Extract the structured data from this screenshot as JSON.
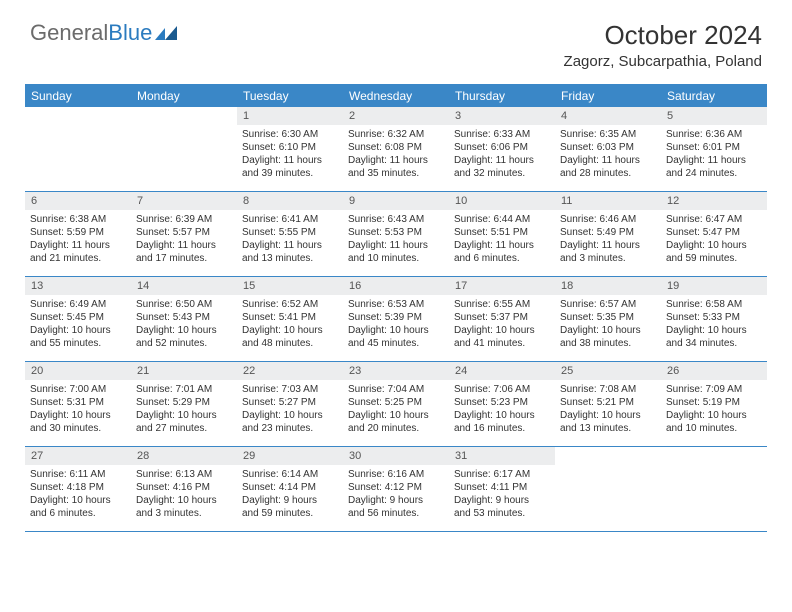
{
  "logo": {
    "text_gray": "General",
    "text_blue": "Blue"
  },
  "title": "October 2024",
  "location": "Zagorz, Subcarpathia, Poland",
  "colors": {
    "header_bg": "#3a87c7",
    "header_text": "#ffffff",
    "daynum_bg": "#ecedee",
    "rule": "#3a87c7",
    "body_text": "#333333"
  },
  "day_headers": [
    "Sunday",
    "Monday",
    "Tuesday",
    "Wednesday",
    "Thursday",
    "Friday",
    "Saturday"
  ],
  "weeks": [
    [
      {
        "empty": true
      },
      {
        "empty": true
      },
      {
        "num": "1",
        "sunrise": "Sunrise: 6:30 AM",
        "sunset": "Sunset: 6:10 PM",
        "daylight1": "Daylight: 11 hours",
        "daylight2": "and 39 minutes."
      },
      {
        "num": "2",
        "sunrise": "Sunrise: 6:32 AM",
        "sunset": "Sunset: 6:08 PM",
        "daylight1": "Daylight: 11 hours",
        "daylight2": "and 35 minutes."
      },
      {
        "num": "3",
        "sunrise": "Sunrise: 6:33 AM",
        "sunset": "Sunset: 6:06 PM",
        "daylight1": "Daylight: 11 hours",
        "daylight2": "and 32 minutes."
      },
      {
        "num": "4",
        "sunrise": "Sunrise: 6:35 AM",
        "sunset": "Sunset: 6:03 PM",
        "daylight1": "Daylight: 11 hours",
        "daylight2": "and 28 minutes."
      },
      {
        "num": "5",
        "sunrise": "Sunrise: 6:36 AM",
        "sunset": "Sunset: 6:01 PM",
        "daylight1": "Daylight: 11 hours",
        "daylight2": "and 24 minutes."
      }
    ],
    [
      {
        "num": "6",
        "sunrise": "Sunrise: 6:38 AM",
        "sunset": "Sunset: 5:59 PM",
        "daylight1": "Daylight: 11 hours",
        "daylight2": "and 21 minutes."
      },
      {
        "num": "7",
        "sunrise": "Sunrise: 6:39 AM",
        "sunset": "Sunset: 5:57 PM",
        "daylight1": "Daylight: 11 hours",
        "daylight2": "and 17 minutes."
      },
      {
        "num": "8",
        "sunrise": "Sunrise: 6:41 AM",
        "sunset": "Sunset: 5:55 PM",
        "daylight1": "Daylight: 11 hours",
        "daylight2": "and 13 minutes."
      },
      {
        "num": "9",
        "sunrise": "Sunrise: 6:43 AM",
        "sunset": "Sunset: 5:53 PM",
        "daylight1": "Daylight: 11 hours",
        "daylight2": "and 10 minutes."
      },
      {
        "num": "10",
        "sunrise": "Sunrise: 6:44 AM",
        "sunset": "Sunset: 5:51 PM",
        "daylight1": "Daylight: 11 hours",
        "daylight2": "and 6 minutes."
      },
      {
        "num": "11",
        "sunrise": "Sunrise: 6:46 AM",
        "sunset": "Sunset: 5:49 PM",
        "daylight1": "Daylight: 11 hours",
        "daylight2": "and 3 minutes."
      },
      {
        "num": "12",
        "sunrise": "Sunrise: 6:47 AM",
        "sunset": "Sunset: 5:47 PM",
        "daylight1": "Daylight: 10 hours",
        "daylight2": "and 59 minutes."
      }
    ],
    [
      {
        "num": "13",
        "sunrise": "Sunrise: 6:49 AM",
        "sunset": "Sunset: 5:45 PM",
        "daylight1": "Daylight: 10 hours",
        "daylight2": "and 55 minutes."
      },
      {
        "num": "14",
        "sunrise": "Sunrise: 6:50 AM",
        "sunset": "Sunset: 5:43 PM",
        "daylight1": "Daylight: 10 hours",
        "daylight2": "and 52 minutes."
      },
      {
        "num": "15",
        "sunrise": "Sunrise: 6:52 AM",
        "sunset": "Sunset: 5:41 PM",
        "daylight1": "Daylight: 10 hours",
        "daylight2": "and 48 minutes."
      },
      {
        "num": "16",
        "sunrise": "Sunrise: 6:53 AM",
        "sunset": "Sunset: 5:39 PM",
        "daylight1": "Daylight: 10 hours",
        "daylight2": "and 45 minutes."
      },
      {
        "num": "17",
        "sunrise": "Sunrise: 6:55 AM",
        "sunset": "Sunset: 5:37 PM",
        "daylight1": "Daylight: 10 hours",
        "daylight2": "and 41 minutes."
      },
      {
        "num": "18",
        "sunrise": "Sunrise: 6:57 AM",
        "sunset": "Sunset: 5:35 PM",
        "daylight1": "Daylight: 10 hours",
        "daylight2": "and 38 minutes."
      },
      {
        "num": "19",
        "sunrise": "Sunrise: 6:58 AM",
        "sunset": "Sunset: 5:33 PM",
        "daylight1": "Daylight: 10 hours",
        "daylight2": "and 34 minutes."
      }
    ],
    [
      {
        "num": "20",
        "sunrise": "Sunrise: 7:00 AM",
        "sunset": "Sunset: 5:31 PM",
        "daylight1": "Daylight: 10 hours",
        "daylight2": "and 30 minutes."
      },
      {
        "num": "21",
        "sunrise": "Sunrise: 7:01 AM",
        "sunset": "Sunset: 5:29 PM",
        "daylight1": "Daylight: 10 hours",
        "daylight2": "and 27 minutes."
      },
      {
        "num": "22",
        "sunrise": "Sunrise: 7:03 AM",
        "sunset": "Sunset: 5:27 PM",
        "daylight1": "Daylight: 10 hours",
        "daylight2": "and 23 minutes."
      },
      {
        "num": "23",
        "sunrise": "Sunrise: 7:04 AM",
        "sunset": "Sunset: 5:25 PM",
        "daylight1": "Daylight: 10 hours",
        "daylight2": "and 20 minutes."
      },
      {
        "num": "24",
        "sunrise": "Sunrise: 7:06 AM",
        "sunset": "Sunset: 5:23 PM",
        "daylight1": "Daylight: 10 hours",
        "daylight2": "and 16 minutes."
      },
      {
        "num": "25",
        "sunrise": "Sunrise: 7:08 AM",
        "sunset": "Sunset: 5:21 PM",
        "daylight1": "Daylight: 10 hours",
        "daylight2": "and 13 minutes."
      },
      {
        "num": "26",
        "sunrise": "Sunrise: 7:09 AM",
        "sunset": "Sunset: 5:19 PM",
        "daylight1": "Daylight: 10 hours",
        "daylight2": "and 10 minutes."
      }
    ],
    [
      {
        "num": "27",
        "sunrise": "Sunrise: 6:11 AM",
        "sunset": "Sunset: 4:18 PM",
        "daylight1": "Daylight: 10 hours",
        "daylight2": "and 6 minutes."
      },
      {
        "num": "28",
        "sunrise": "Sunrise: 6:13 AM",
        "sunset": "Sunset: 4:16 PM",
        "daylight1": "Daylight: 10 hours",
        "daylight2": "and 3 minutes."
      },
      {
        "num": "29",
        "sunrise": "Sunrise: 6:14 AM",
        "sunset": "Sunset: 4:14 PM",
        "daylight1": "Daylight: 9 hours",
        "daylight2": "and 59 minutes."
      },
      {
        "num": "30",
        "sunrise": "Sunrise: 6:16 AM",
        "sunset": "Sunset: 4:12 PM",
        "daylight1": "Daylight: 9 hours",
        "daylight2": "and 56 minutes."
      },
      {
        "num": "31",
        "sunrise": "Sunrise: 6:17 AM",
        "sunset": "Sunset: 4:11 PM",
        "daylight1": "Daylight: 9 hours",
        "daylight2": "and 53 minutes."
      },
      {
        "empty": true
      },
      {
        "empty": true
      }
    ]
  ]
}
